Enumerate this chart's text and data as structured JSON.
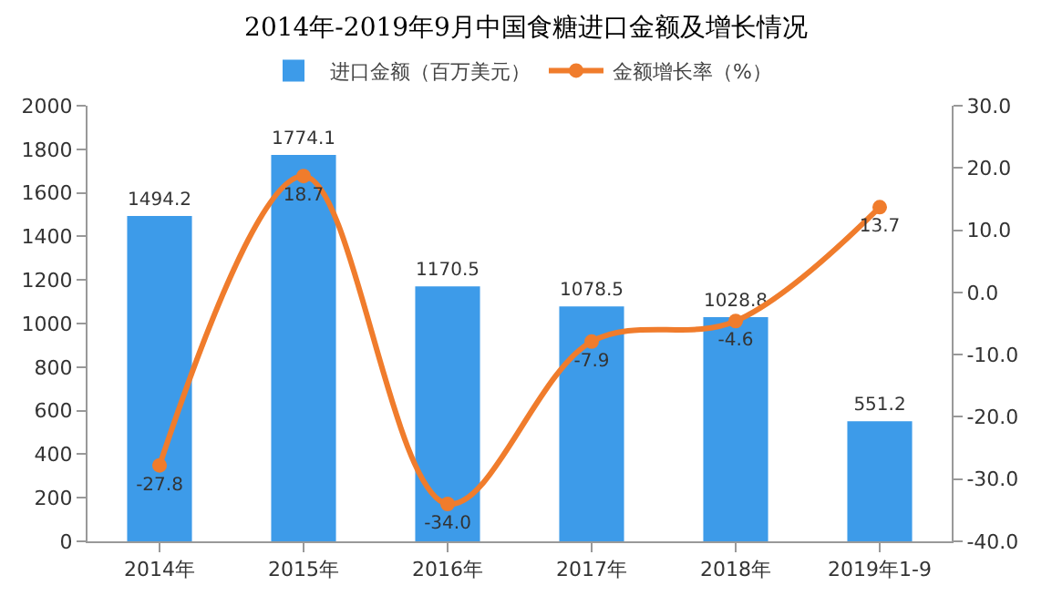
{
  "chart_data": {
    "type": "bar",
    "title": "2014年-2019年9月中国食糖进口金额及增长情况",
    "categories": [
      "2014年",
      "2015年",
      "2016年",
      "2017年",
      "2018年",
      "2019年1-9"
    ],
    "series": [
      {
        "name": "进口金额（百万美元）",
        "color": "#3d9be9",
        "values": [
          1494.2,
          1774.1,
          1170.5,
          1078.5,
          1028.8,
          551.2
        ],
        "value_labels": [
          "1494.2",
          "1774.1",
          "1170.5",
          "1078.5",
          "1028.8",
          "551.2"
        ]
      },
      {
        "name": "金额增长率（%）",
        "type": "line",
        "axis": "y2",
        "color": "#f07c2c",
        "marker": "circle",
        "values": [
          -27.8,
          18.7,
          -34.0,
          -7.9,
          -4.6,
          13.7
        ],
        "value_labels": [
          "-27.8",
          "18.7",
          "-34.0",
          "-7.9",
          "-4.6",
          "13.7"
        ]
      }
    ],
    "ylim": [
      0,
      2000
    ],
    "yticks": [
      0,
      200,
      400,
      600,
      800,
      1000,
      1200,
      1400,
      1600,
      1800,
      2000
    ],
    "y2lim": [
      -40,
      30
    ],
    "y2ticks": [
      {
        "value": -40,
        "label": "-40.0"
      },
      {
        "value": -30,
        "label": "-30.0"
      },
      {
        "value": -20,
        "label": "-20.0"
      },
      {
        "value": -10,
        "label": "-10.0"
      },
      {
        "value": 0,
        "label": "0.0"
      },
      {
        "value": 10,
        "label": "10.0"
      },
      {
        "value": 20,
        "label": "20.0"
      },
      {
        "value": 30,
        "label": "30.0"
      }
    ],
    "grid": false,
    "legend": "top"
  }
}
